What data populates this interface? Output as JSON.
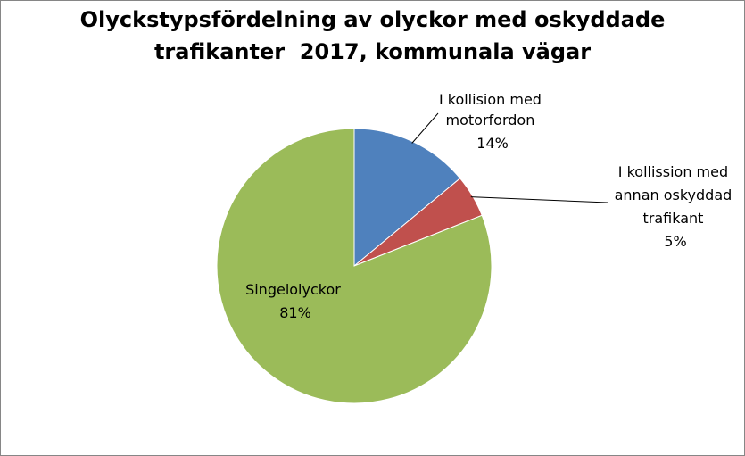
{
  "chart_data": {
    "type": "pie",
    "title_lines": [
      "Olyckstypsfördelning av olyckor med oskyddade",
      "trafikanter  2017, kommunala vägar"
    ],
    "slices": [
      {
        "label_lines": [
          "I kollision med",
          "motorfordon"
        ],
        "percent_label": "14%",
        "value": 14,
        "color": "#4f81bd"
      },
      {
        "label_lines": [
          "I kollission med",
          "annan oskyddad",
          "trafikant"
        ],
        "percent_label": "5%",
        "value": 5,
        "color": "#c0504d"
      },
      {
        "label_lines": [
          "Singelolyckor"
        ],
        "percent_label": "81%",
        "value": 81,
        "color": "#9bbb59"
      }
    ],
    "start_angle": "12 o'clock",
    "direction": "clockwise",
    "legend": "none"
  }
}
